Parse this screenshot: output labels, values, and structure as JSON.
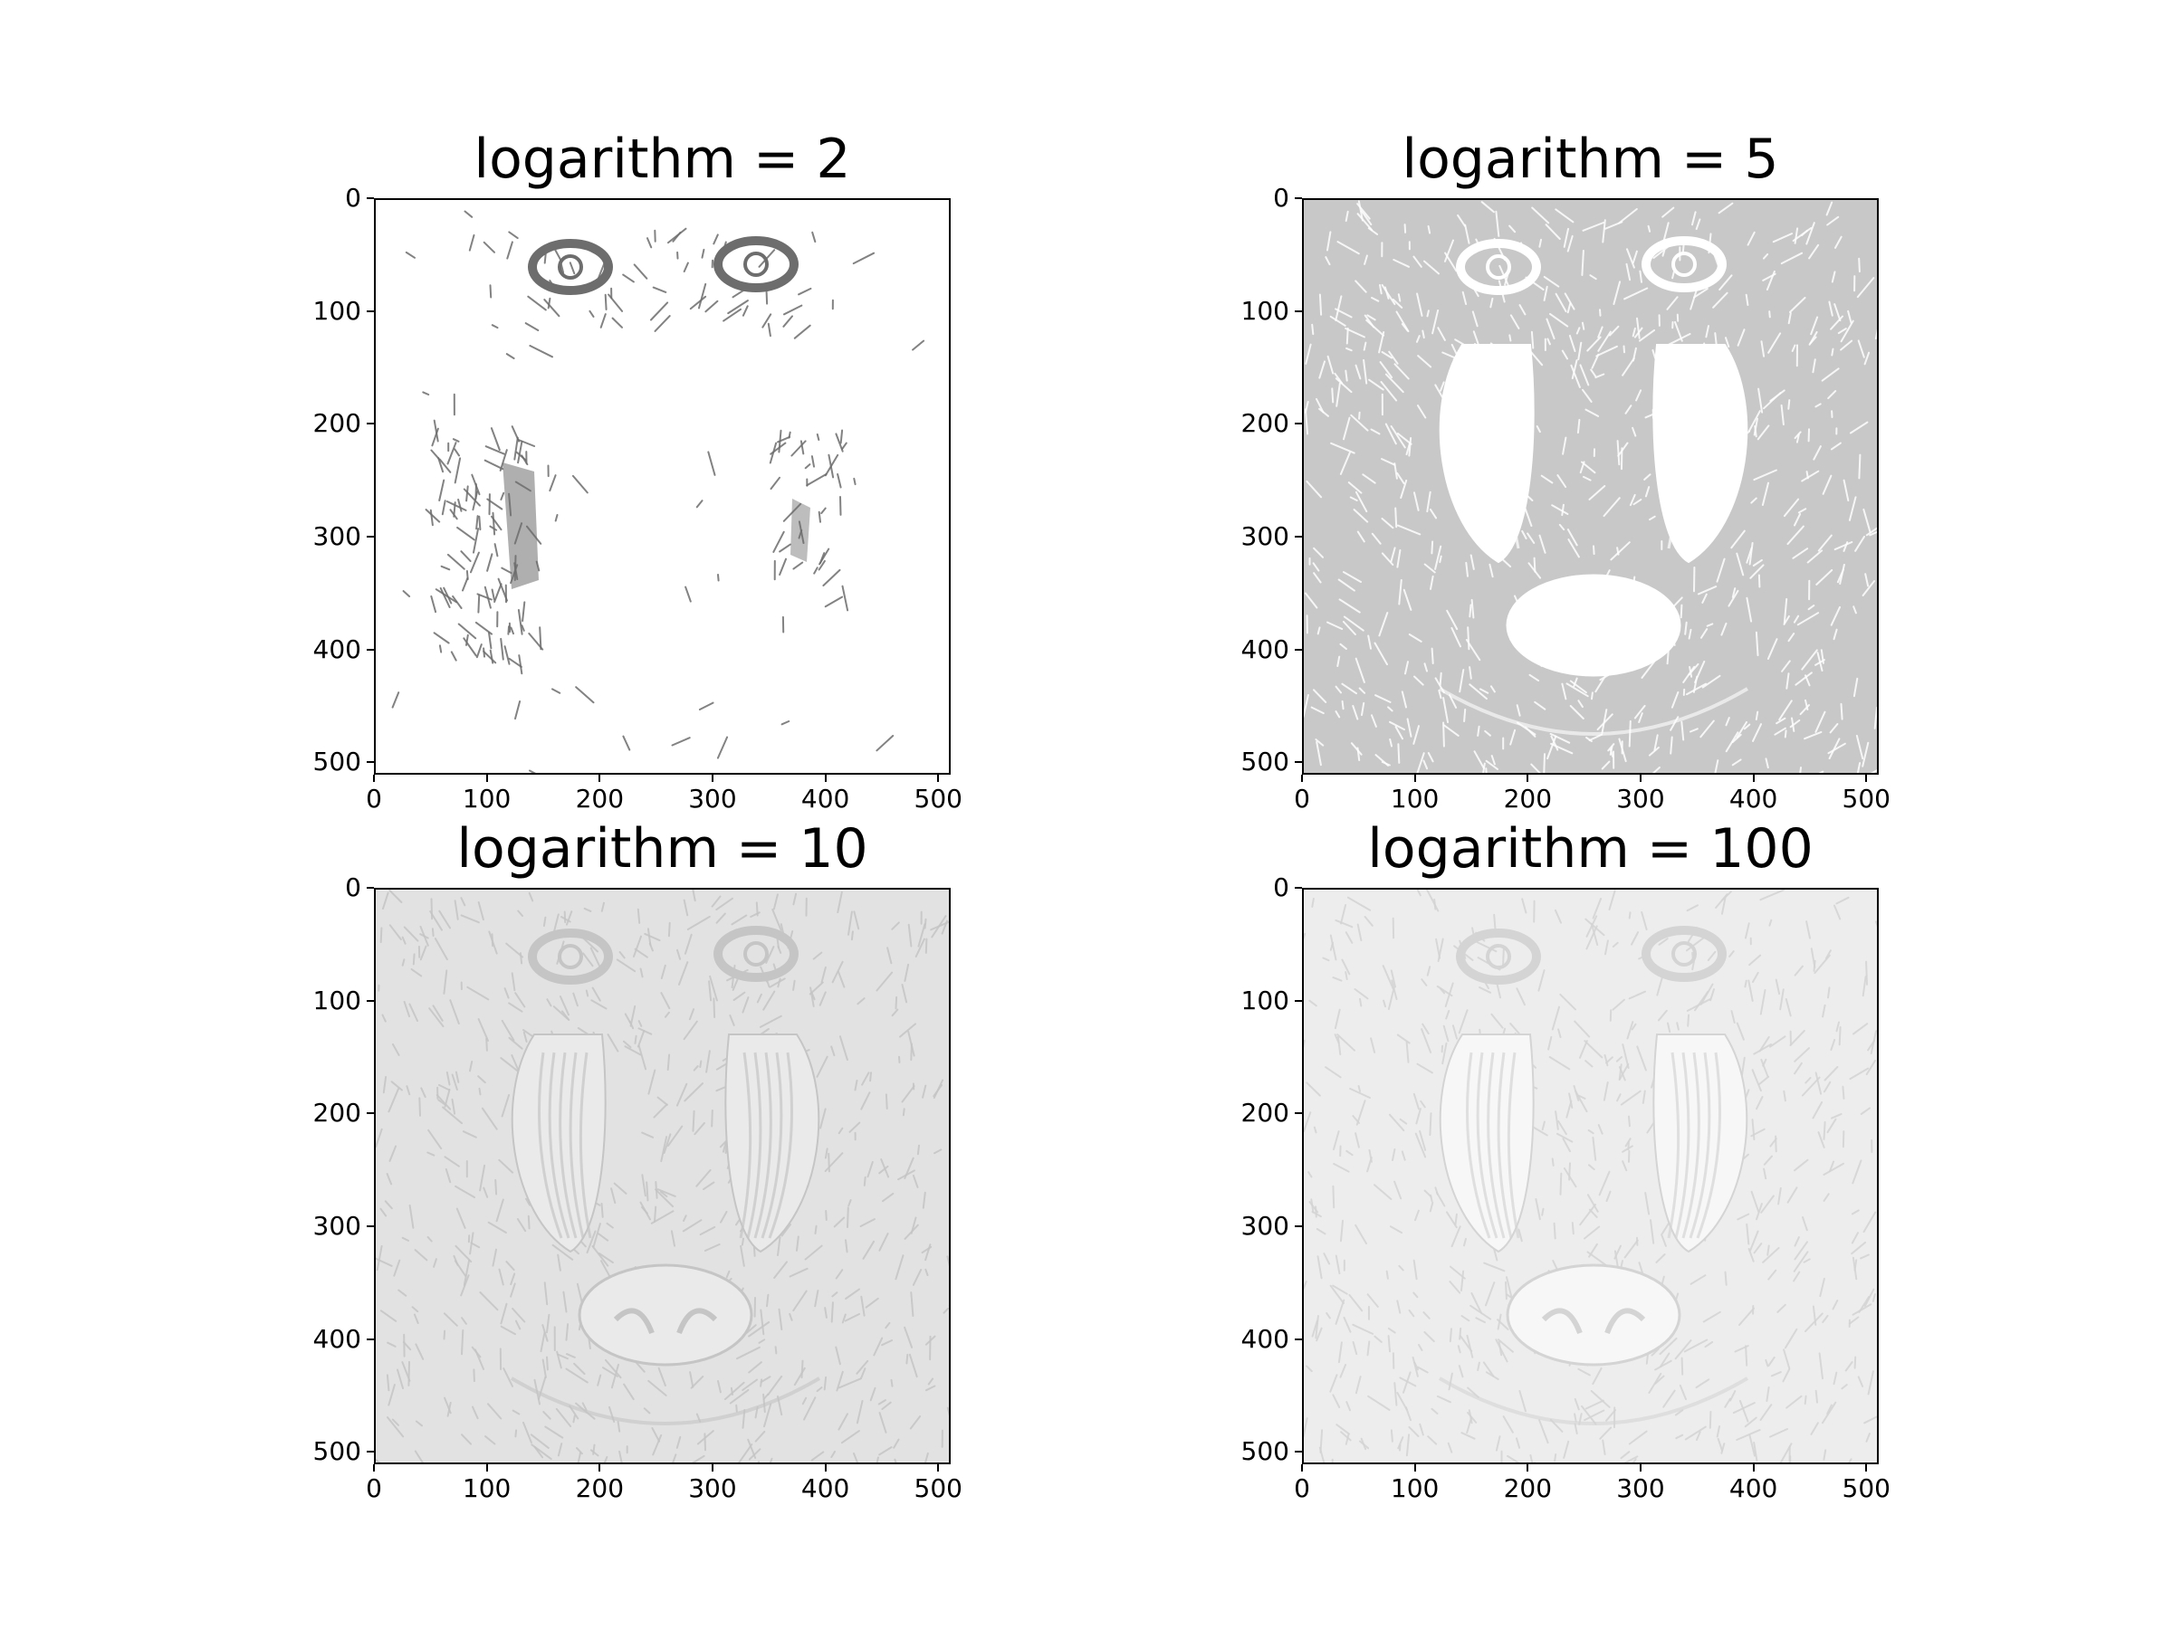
{
  "figure": {
    "panels": [
      {
        "title": "logarithm = 2",
        "background": "#ffffff",
        "foreground": "#6d6d6d",
        "style": "sparse"
      },
      {
        "title": "logarithm = 5",
        "background": "#c8c8c8",
        "foreground": "#ffffff",
        "style": "light"
      },
      {
        "title": "logarithm = 10",
        "background": "#e2e2e2",
        "foreground": "#c5c5c5",
        "style": "dark"
      },
      {
        "title": "logarithm = 100",
        "background": "#ededed",
        "foreground": "#d4d4d4",
        "style": "soft"
      }
    ]
  },
  "chart_data": [
    {
      "type": "heatmap",
      "title": "logarithm = 2",
      "xlabel": "",
      "ylabel": "",
      "xlim": [
        0,
        511
      ],
      "ylim": [
        511,
        0
      ],
      "xticks": [
        "0",
        "100",
        "200",
        "300",
        "400",
        "500"
      ],
      "yticks": [
        "0",
        "100",
        "200",
        "300",
        "400",
        "500"
      ],
      "grid": false
    },
    {
      "type": "heatmap",
      "title": "logarithm = 5",
      "xlabel": "",
      "ylabel": "",
      "xlim": [
        0,
        511
      ],
      "ylim": [
        511,
        0
      ],
      "xticks": [
        "0",
        "100",
        "200",
        "300",
        "400",
        "500"
      ],
      "yticks": [
        "0",
        "100",
        "200",
        "300",
        "400",
        "500"
      ],
      "grid": false
    },
    {
      "type": "heatmap",
      "title": "logarithm = 10",
      "xlabel": "",
      "ylabel": "",
      "xlim": [
        0,
        511
      ],
      "ylim": [
        511,
        0
      ],
      "xticks": [
        "0",
        "100",
        "200",
        "300",
        "400",
        "500"
      ],
      "yticks": [
        "0",
        "100",
        "200",
        "300",
        "400",
        "500"
      ],
      "grid": false
    },
    {
      "type": "heatmap",
      "title": "logarithm = 100",
      "xlabel": "",
      "ylabel": "",
      "xlim": [
        0,
        511
      ],
      "ylim": [
        511,
        0
      ],
      "xticks": [
        "0",
        "100",
        "200",
        "300",
        "400",
        "500"
      ],
      "yticks": [
        "0",
        "100",
        "200",
        "300",
        "400",
        "500"
      ],
      "grid": false
    }
  ]
}
